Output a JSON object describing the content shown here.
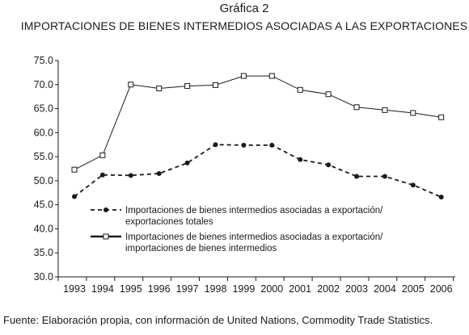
{
  "chart_data": {
    "type": "line",
    "title": "Gráfica 2",
    "subtitle": "IMPORTACIONES DE BIENES INTERMEDIOS ASOCIADAS A LAS EXPORTACIONES",
    "xlabel": "",
    "ylabel": "",
    "x": [
      "1993",
      "1994",
      "1995",
      "1996",
      "1997",
      "1998",
      "1999",
      "2000",
      "2001",
      "2002",
      "2003",
      "2004",
      "2005",
      "2006"
    ],
    "ylim": [
      30,
      75
    ],
    "yticks": [
      "30.0",
      "35.0",
      "40.0",
      "45.0",
      "50.0",
      "55.0",
      "60.0",
      "65.0",
      "70.0",
      "75.0"
    ],
    "grid": false,
    "legend_position": "center-left",
    "series": [
      {
        "name": "Importaciones de bienes intermedios asociadas a exportación/ exportaciones totales",
        "legend_lines": [
          "Importaciones de bienes intermedios asociadas a exportación/",
          "exportaciones totales"
        ],
        "style": "dashed",
        "marker": "filled-circle",
        "values": [
          46.7,
          51.2,
          51.1,
          51.5,
          53.7,
          57.5,
          57.4,
          57.4,
          54.4,
          53.3,
          50.9,
          50.9,
          49.1,
          46.6
        ]
      },
      {
        "name": "Importaciones de bienes intermedios asociadas a exportación/ importaciones de bienes intermedios",
        "legend_lines": [
          "Importaciones de bienes intermedios asociadas a exportación/",
          "importaciones de bienes intermedios"
        ],
        "style": "solid",
        "marker": "open-square",
        "values": [
          52.3,
          55.3,
          70.0,
          69.2,
          69.7,
          69.9,
          71.8,
          71.8,
          68.9,
          68.0,
          65.3,
          64.7,
          64.1,
          63.2
        ]
      }
    ]
  },
  "source": {
    "label": "Fuente:",
    "text": " Elaboración propia, con información de United Nations, Commodity Trade Statistics."
  },
  "colors": {
    "line": "#1a1a1a",
    "background": "#ffffff"
  }
}
